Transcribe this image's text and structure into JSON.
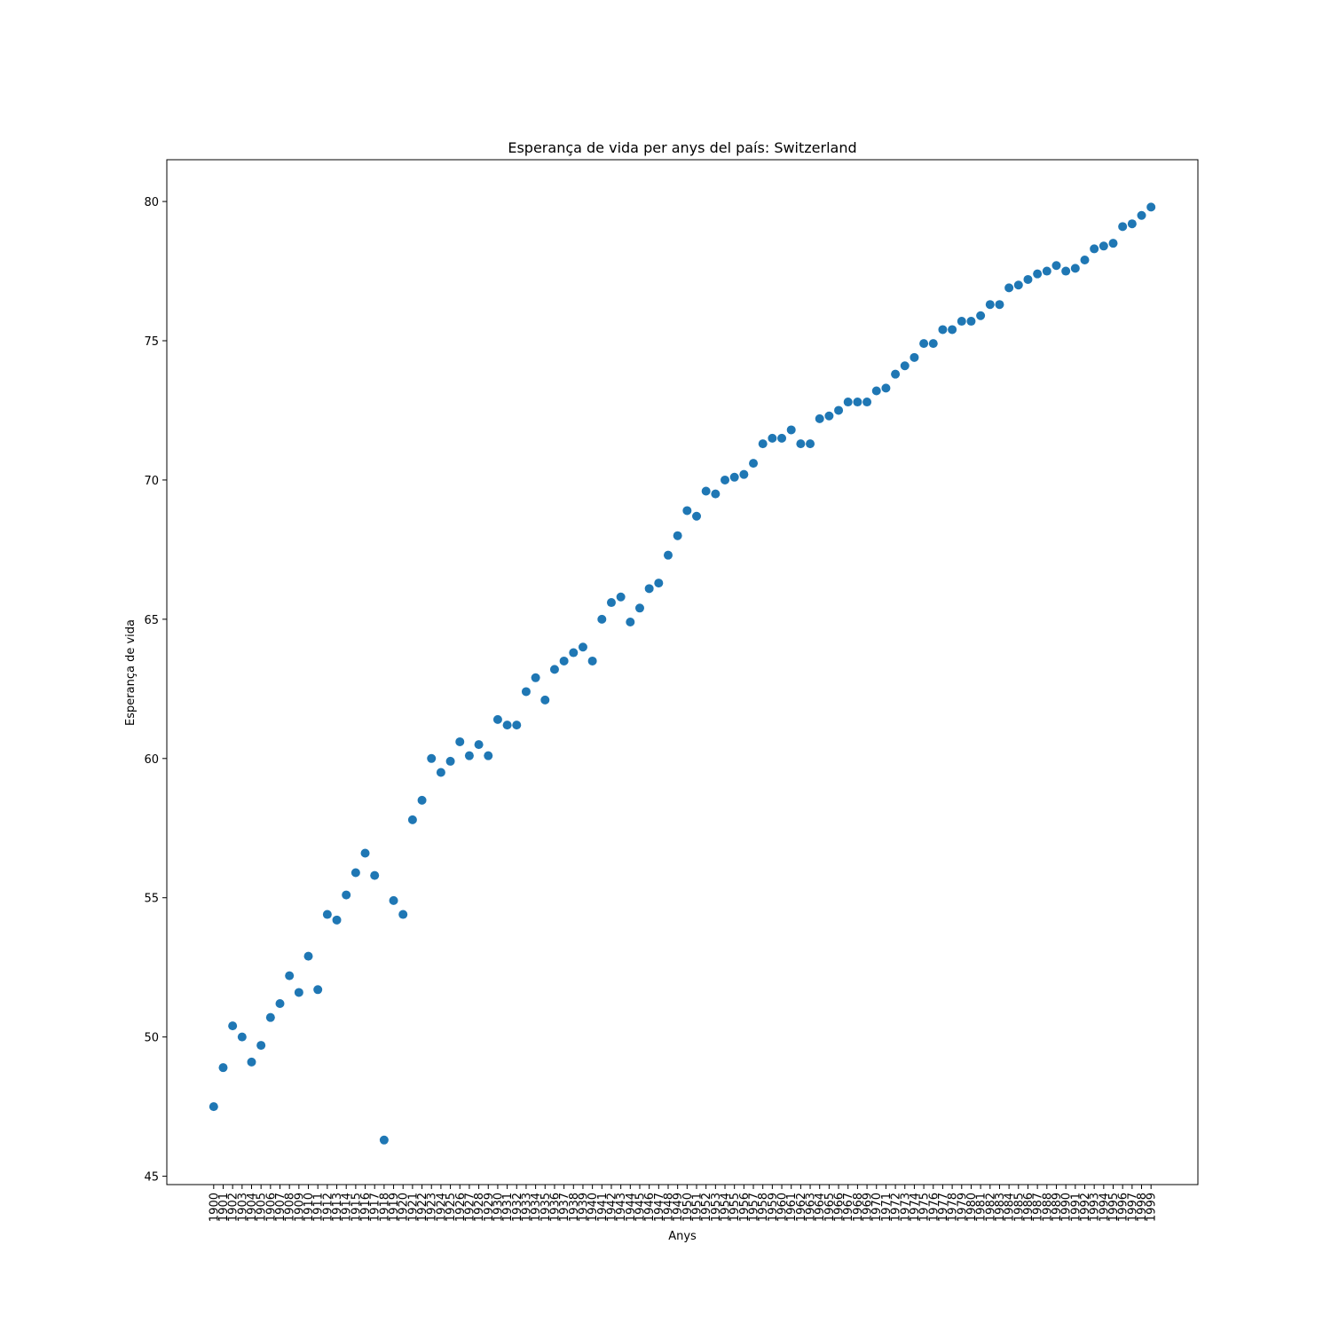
{
  "chart_data": {
    "type": "scatter",
    "title": "Esperança de vida per anys del país: Switzerland",
    "xlabel": "Anys",
    "ylabel": "Esperança de vida",
    "ylim": [
      44.7,
      81.5
    ],
    "yticks": [
      45,
      50,
      55,
      60,
      65,
      70,
      75,
      80
    ],
    "grid": false,
    "marker_color": "#1f77b4",
    "x": [
      "1900",
      "1901",
      "1902",
      "1903",
      "1904",
      "1905",
      "1906",
      "1907",
      "1908",
      "1909",
      "1910",
      "1911",
      "1912",
      "1913",
      "1914",
      "1915",
      "1916",
      "1917",
      "1918",
      "1919",
      "1920",
      "1921",
      "1922",
      "1923",
      "1924",
      "1925",
      "1926",
      "1927",
      "1928",
      "1929",
      "1930",
      "1931",
      "1932",
      "1933",
      "1934",
      "1935",
      "1936",
      "1937",
      "1938",
      "1939",
      "1940",
      "1941",
      "1942",
      "1943",
      "1944",
      "1945",
      "1946",
      "1947",
      "1948",
      "1949",
      "1950",
      "1951",
      "1952",
      "1953",
      "1954",
      "1955",
      "1956",
      "1957",
      "1958",
      "1959",
      "1960",
      "1961",
      "1962",
      "1963",
      "1964",
      "1965",
      "1966",
      "1967",
      "1968",
      "1969",
      "1970",
      "1971",
      "1972",
      "1973",
      "1974",
      "1975",
      "1976",
      "1977",
      "1978",
      "1979",
      "1980",
      "1981",
      "1982",
      "1983",
      "1984",
      "1985",
      "1986",
      "1987",
      "1988",
      "1989",
      "1990",
      "1991",
      "1992",
      "1993",
      "1994",
      "1995",
      "1996",
      "1997",
      "1998",
      "1999"
    ],
    "y": [
      47.5,
      48.9,
      50.4,
      50.0,
      49.1,
      49.7,
      50.7,
      51.2,
      52.2,
      51.6,
      52.9,
      51.7,
      54.4,
      54.2,
      55.1,
      55.9,
      56.6,
      55.8,
      46.3,
      54.9,
      54.4,
      57.8,
      58.5,
      60.0,
      59.5,
      59.9,
      60.6,
      60.1,
      60.5,
      60.1,
      61.4,
      61.2,
      61.2,
      62.4,
      62.9,
      62.1,
      63.2,
      63.5,
      63.8,
      64.0,
      63.5,
      65.0,
      65.6,
      65.8,
      64.9,
      65.4,
      66.1,
      66.3,
      67.3,
      68.0,
      68.9,
      68.7,
      69.6,
      69.5,
      70.0,
      70.1,
      70.2,
      70.6,
      71.3,
      71.5,
      71.5,
      71.8,
      71.3,
      71.3,
      72.2,
      72.3,
      72.5,
      72.8,
      72.8,
      72.8,
      73.2,
      73.3,
      73.8,
      74.1,
      74.4,
      74.9,
      74.9,
      75.4,
      75.4,
      75.7,
      75.7,
      75.9,
      76.3,
      76.3,
      76.9,
      77.0,
      77.2,
      77.4,
      77.5,
      77.7,
      77.5,
      77.6,
      77.9,
      78.3,
      78.4,
      78.5,
      79.1,
      79.2,
      79.5,
      79.8
    ]
  }
}
